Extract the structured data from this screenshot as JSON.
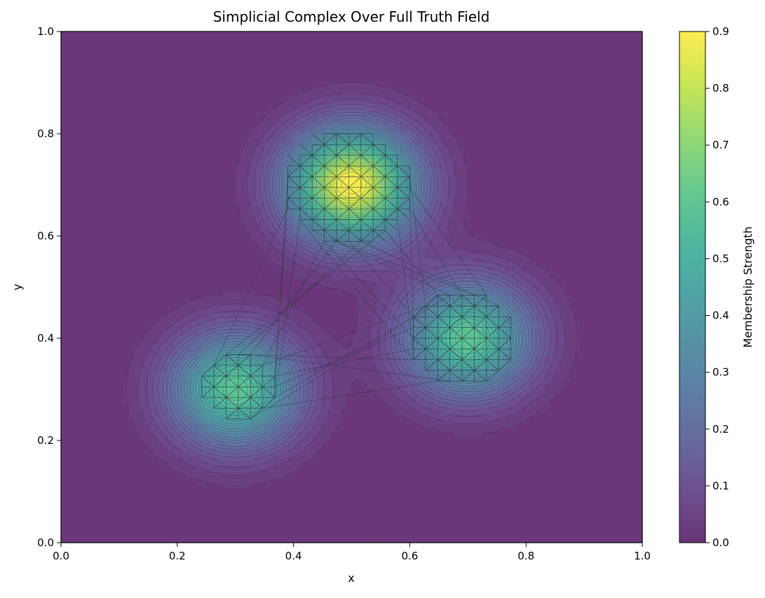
{
  "chart_data": {
    "type": "heatmap",
    "title": "Simplicial Complex Over Full Truth Field",
    "xlabel": "x",
    "ylabel": "y",
    "xlim": [
      0.0,
      1.0
    ],
    "ylim": [
      0.0,
      1.0
    ],
    "x_ticks": [
      "0.0",
      "0.2",
      "0.4",
      "0.6",
      "0.8",
      "1.0"
    ],
    "y_ticks": [
      "0.0",
      "0.2",
      "0.4",
      "0.6",
      "0.8",
      "1.0"
    ],
    "colorbar": {
      "label": "Membership Strength",
      "range": [
        0.0,
        0.9
      ],
      "ticks": [
        "0.0",
        "0.1",
        "0.2",
        "0.3",
        "0.4",
        "0.5",
        "0.6",
        "0.7",
        "0.8",
        "0.9"
      ],
      "colormap": "viridis"
    },
    "field_peaks": [
      {
        "x": 0.5,
        "y": 0.7,
        "peak": 0.9
      },
      {
        "x": 0.7,
        "y": 0.4,
        "peak": 0.6
      },
      {
        "x": 0.3,
        "y": 0.3,
        "peak": 0.6
      }
    ],
    "clusters": [
      {
        "cx": 0.495,
        "cy": 0.695,
        "radius": 0.105
      },
      {
        "cx": 0.69,
        "cy": 0.4,
        "radius": 0.085
      },
      {
        "cx": 0.305,
        "cy": 0.305,
        "radius": 0.065
      }
    ],
    "grid": false,
    "colors": {
      "mesh": "#1a2a2a",
      "background": "#ffffff"
    }
  }
}
